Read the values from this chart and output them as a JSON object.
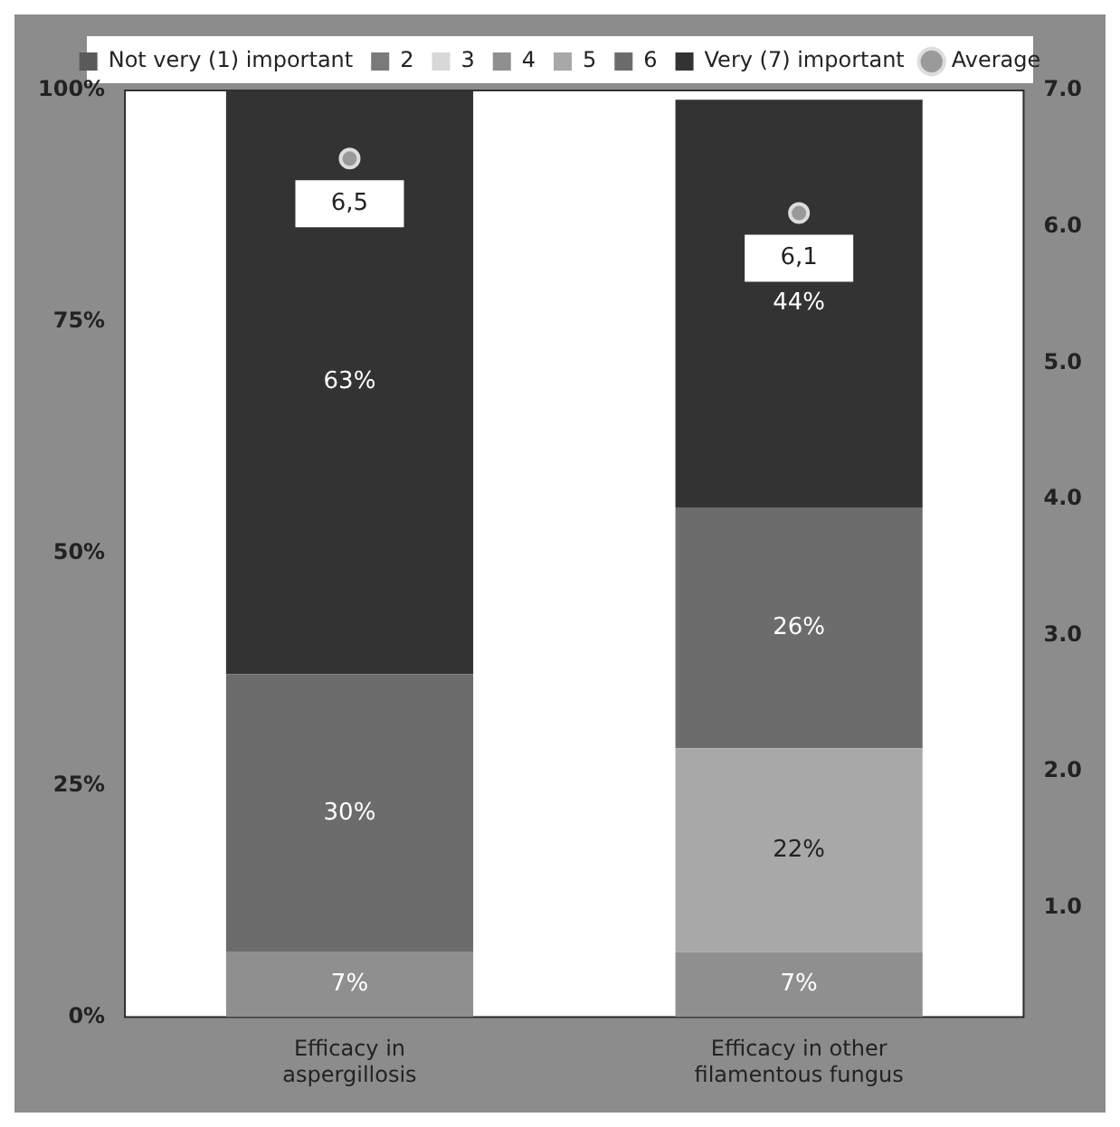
{
  "chart_data": {
    "type": "bar",
    "stacked": true,
    "categories": [
      "Efficacy in aspergillosis",
      "Efficacy in other filamentous fungus"
    ],
    "series": [
      {
        "name": "Not very (1) important",
        "color": "#5a5a5a",
        "values": [
          0,
          0
        ]
      },
      {
        "name": "2",
        "color": "#7a7a7a",
        "values": [
          0,
          0
        ]
      },
      {
        "name": "3",
        "color": "#d8d8d8",
        "values": [
          0,
          0
        ]
      },
      {
        "name": "4",
        "color": "#8f8f8f",
        "values": [
          7,
          7
        ],
        "value_labels": [
          "7%",
          "7%"
        ]
      },
      {
        "name": "5",
        "color": "#a8a8a8",
        "values": [
          0,
          22
        ],
        "value_labels": [
          null,
          "22%"
        ]
      },
      {
        "name": "6",
        "color": "#6c6c6c",
        "values": [
          30,
          26
        ],
        "value_labels": [
          "30%",
          "26%"
        ]
      },
      {
        "name": "Very (7) important",
        "color": "#333333",
        "values": [
          63,
          44
        ],
        "value_labels": [
          "63%",
          "44%"
        ]
      },
      {
        "name": "Average",
        "type": "scatter",
        "axis": "y2",
        "color": "#9a9a9a",
        "values": [
          6.5,
          6.1
        ],
        "value_labels": [
          "6,5",
          "6,1"
        ]
      }
    ],
    "ylim": [
      0,
      100
    ],
    "yticks": [
      {
        "value": 0,
        "label": "0%"
      },
      {
        "value": 25,
        "label": "25%"
      },
      {
        "value": 50,
        "label": "50%"
      },
      {
        "value": 75,
        "label": "75%"
      },
      {
        "value": 100,
        "label": "100%"
      }
    ],
    "y2lim": [
      0.2,
      7
    ],
    "y2ticks": [
      {
        "value": 1,
        "label": "1.0"
      },
      {
        "value": 2,
        "label": "2.0"
      },
      {
        "value": 3,
        "label": "3.0"
      },
      {
        "value": 4,
        "label": "4.0"
      },
      {
        "value": 5,
        "label": "5.0"
      },
      {
        "value": 6,
        "label": "6.0"
      },
      {
        "value": 7,
        "label": "7.0"
      }
    ],
    "legend": "top",
    "marker": "circle",
    "grid": false
  }
}
